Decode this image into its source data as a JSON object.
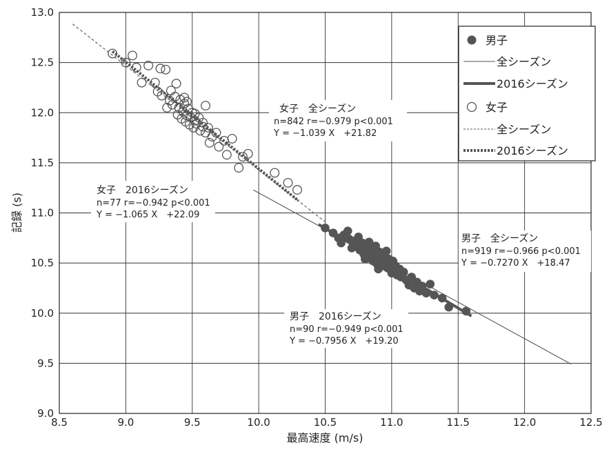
{
  "chart_data": {
    "type": "scatter",
    "xlabel": "最高速度 (m/s)",
    "ylabel": "記録 (s)",
    "xlim": [
      8.5,
      12.5
    ],
    "ylim": [
      9.0,
      13.0
    ],
    "xticks": [
      "8.5",
      "9.0",
      "9.5",
      "10.0",
      "10.5",
      "11.0",
      "11.5",
      "12.0",
      "12.5"
    ],
    "yticks": [
      "9.0",
      "9.5",
      "10.0",
      "10.5",
      "11.0",
      "11.5",
      "12.0",
      "12.5",
      "13.0"
    ],
    "grid": true,
    "legend_position": "top-right",
    "legend": [
      {
        "label": "男子",
        "style": "filled-circle"
      },
      {
        "label": "全シーズン",
        "style": "thin-solid"
      },
      {
        "label": "2016シーズン",
        "style": "thick-solid"
      },
      {
        "label": "女子",
        "style": "open-circle"
      },
      {
        "label": "全シーズン",
        "style": "thin-dashed"
      },
      {
        "label": "2016シーズン",
        "style": "thick-dotted"
      }
    ],
    "series": [
      {
        "name": "男子",
        "marker": "filled",
        "color": "#555555",
        "points": [
          [
            10.5,
            10.85
          ],
          [
            10.56,
            10.8
          ],
          [
            10.6,
            10.75
          ],
          [
            10.62,
            10.7
          ],
          [
            10.64,
            10.78
          ],
          [
            10.67,
            10.82
          ],
          [
            10.68,
            10.74
          ],
          [
            10.7,
            10.65
          ],
          [
            10.72,
            10.72
          ],
          [
            10.73,
            10.68
          ],
          [
            10.75,
            10.76
          ],
          [
            10.76,
            10.63
          ],
          [
            10.78,
            10.7
          ],
          [
            10.79,
            10.59
          ],
          [
            10.8,
            10.66
          ],
          [
            10.81,
            10.62
          ],
          [
            10.82,
            10.55
          ],
          [
            10.83,
            10.71
          ],
          [
            10.84,
            10.6
          ],
          [
            10.85,
            10.64
          ],
          [
            10.86,
            10.52
          ],
          [
            10.87,
            10.58
          ],
          [
            10.88,
            10.67
          ],
          [
            10.89,
            10.49
          ],
          [
            10.9,
            10.56
          ],
          [
            10.91,
            10.61
          ],
          [
            10.92,
            10.53
          ],
          [
            10.93,
            10.47
          ],
          [
            10.94,
            10.57
          ],
          [
            10.95,
            10.5
          ],
          [
            10.96,
            10.62
          ],
          [
            10.97,
            10.45
          ],
          [
            10.98,
            10.54
          ],
          [
            10.99,
            10.49
          ],
          [
            11.0,
            10.43
          ],
          [
            11.01,
            10.52
          ],
          [
            11.02,
            10.41
          ],
          [
            11.03,
            10.47
          ],
          [
            11.04,
            10.38
          ],
          [
            11.06,
            10.44
          ],
          [
            11.07,
            10.36
          ],
          [
            11.09,
            10.41
          ],
          [
            11.11,
            10.33
          ],
          [
            11.13,
            10.28
          ],
          [
            11.15,
            10.36
          ],
          [
            11.17,
            10.25
          ],
          [
            11.19,
            10.31
          ],
          [
            11.21,
            10.22
          ],
          [
            11.23,
            10.27
          ],
          [
            11.26,
            10.2
          ],
          [
            11.29,
            10.29
          ],
          [
            11.32,
            10.18
          ],
          [
            11.38,
            10.15
          ],
          [
            11.43,
            10.06
          ],
          [
            11.56,
            10.02
          ],
          [
            10.8,
            10.54
          ],
          [
            10.9,
            10.44
          ],
          [
            11.0,
            10.4
          ],
          [
            10.88,
            10.6
          ],
          [
            10.7,
            10.72
          ]
        ]
      },
      {
        "name": "女子",
        "marker": "open",
        "color": "#555555",
        "points": [
          [
            8.9,
            12.59
          ],
          [
            9.0,
            12.5
          ],
          [
            9.05,
            12.57
          ],
          [
            9.08,
            12.45
          ],
          [
            9.12,
            12.3
          ],
          [
            9.17,
            12.47
          ],
          [
            9.22,
            12.3
          ],
          [
            9.24,
            12.21
          ],
          [
            9.26,
            12.44
          ],
          [
            9.27,
            12.17
          ],
          [
            9.3,
            12.43
          ],
          [
            9.31,
            12.05
          ],
          [
            9.33,
            12.12
          ],
          [
            9.35,
            12.08
          ],
          [
            9.37,
            12.16
          ],
          [
            9.38,
            12.29
          ],
          [
            9.39,
            11.98
          ],
          [
            9.4,
            12.05
          ],
          [
            9.41,
            12.13
          ],
          [
            9.42,
            11.94
          ],
          [
            9.43,
            12.01
          ],
          [
            9.44,
            12.09
          ],
          [
            9.45,
            11.91
          ],
          [
            9.46,
            11.97
          ],
          [
            9.47,
            12.04
          ],
          [
            9.48,
            11.88
          ],
          [
            9.49,
            11.95
          ],
          [
            9.5,
            12.0
          ],
          [
            9.51,
            11.85
          ],
          [
            9.52,
            11.92
          ],
          [
            9.53,
            11.89
          ],
          [
            9.55,
            11.95
          ],
          [
            9.56,
            11.82
          ],
          [
            9.58,
            11.9
          ],
          [
            9.6,
            12.07
          ],
          [
            9.6,
            11.8
          ],
          [
            9.62,
            11.85
          ],
          [
            9.63,
            11.7
          ],
          [
            9.65,
            11.76
          ],
          [
            9.68,
            11.8
          ],
          [
            9.7,
            11.66
          ],
          [
            9.74,
            11.72
          ],
          [
            9.76,
            11.58
          ],
          [
            9.8,
            11.74
          ],
          [
            9.85,
            11.45
          ],
          [
            9.88,
            11.56
          ],
          [
            9.92,
            11.59
          ],
          [
            10.12,
            11.4
          ],
          [
            10.22,
            11.3
          ],
          [
            10.29,
            11.23
          ],
          [
            9.34,
            12.22
          ],
          [
            9.44,
            12.15
          ],
          [
            9.52,
            11.99
          ],
          [
            9.46,
            12.11
          ],
          [
            9.58,
            11.86
          ]
        ]
      }
    ],
    "lines": [
      {
        "name": "男子 全シーズン",
        "style": "thin-solid",
        "slope": -0.727,
        "intercept": 18.47,
        "x_range": [
          9.96,
          12.35
        ]
      },
      {
        "name": "男子 2016シーズン",
        "style": "thick-solid",
        "slope": -0.7956,
        "intercept": 19.2,
        "x_range": [
          10.45,
          11.6
        ]
      },
      {
        "name": "女子 全シーズン",
        "style": "thin-dashed",
        "slope": -1.039,
        "intercept": 21.82,
        "x_range": [
          8.6,
          10.5
        ]
      },
      {
        "name": "女子 2016シーズン",
        "style": "thick-dotted",
        "slope": -1.065,
        "intercept": 22.09,
        "x_range": [
          8.9,
          10.3
        ]
      }
    ],
    "annotations": [
      {
        "title": "女子　全シーズン",
        "stats": "n=842 r=−0.979 p<0.001",
        "equation": "Y = −1.039 X　+21.82"
      },
      {
        "title": "女子　2016シーズン",
        "stats": "n=77 r=−0.942 p<0.001",
        "equation": "Y = −1.065 X　+22.09"
      },
      {
        "title": "男子　全シーズン",
        "stats": "n=919 r=−0.966 p<0.001",
        "equation": "Y = −0.7270 X　+18.47"
      },
      {
        "title": "男子　2016シーズン",
        "stats": "n=90 r=−0.949 p<0.001",
        "equation": "Y = −0.7956 X　+19.20"
      }
    ]
  }
}
